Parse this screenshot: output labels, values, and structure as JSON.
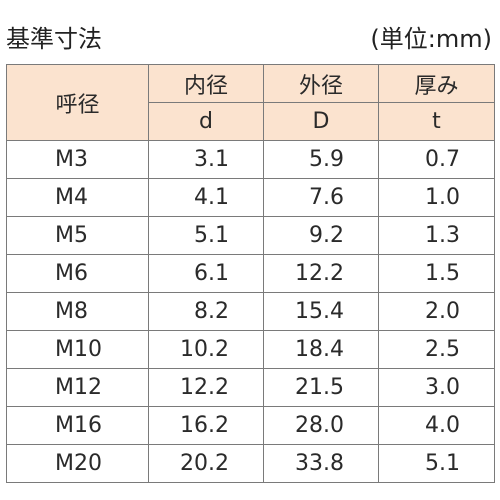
{
  "title": "基準寸法",
  "unit": "(単位:mm)",
  "table": {
    "header_main": "呼径",
    "columns": [
      {
        "label": "内径",
        "symbol": "d"
      },
      {
        "label": "外径",
        "symbol": "D"
      },
      {
        "label": "厚み",
        "symbol": "t"
      }
    ],
    "rows": [
      {
        "name": "M3",
        "d": "3.1",
        "D": "5.9",
        "t": "0.7"
      },
      {
        "name": "M4",
        "d": "4.1",
        "D": "7.6",
        "t": "1.0"
      },
      {
        "name": "M5",
        "d": "5.1",
        "D": "9.2",
        "t": "1.3"
      },
      {
        "name": "M6",
        "d": "6.1",
        "D": "12.2",
        "t": "1.5"
      },
      {
        "name": "M8",
        "d": "8.2",
        "D": "15.4",
        "t": "2.0"
      },
      {
        "name": "M10",
        "d": "10.2",
        "D": "18.4",
        "t": "2.5"
      },
      {
        "name": "M12",
        "d": "12.2",
        "D": "21.5",
        "t": "3.0"
      },
      {
        "name": "M16",
        "d": "16.2",
        "D": "28.0",
        "t": "4.0"
      },
      {
        "name": "M20",
        "d": "20.2",
        "D": "33.8",
        "t": "5.1"
      }
    ]
  },
  "colors": {
    "header_bg": "#fbe3cf",
    "border": "#7a7a7a"
  }
}
